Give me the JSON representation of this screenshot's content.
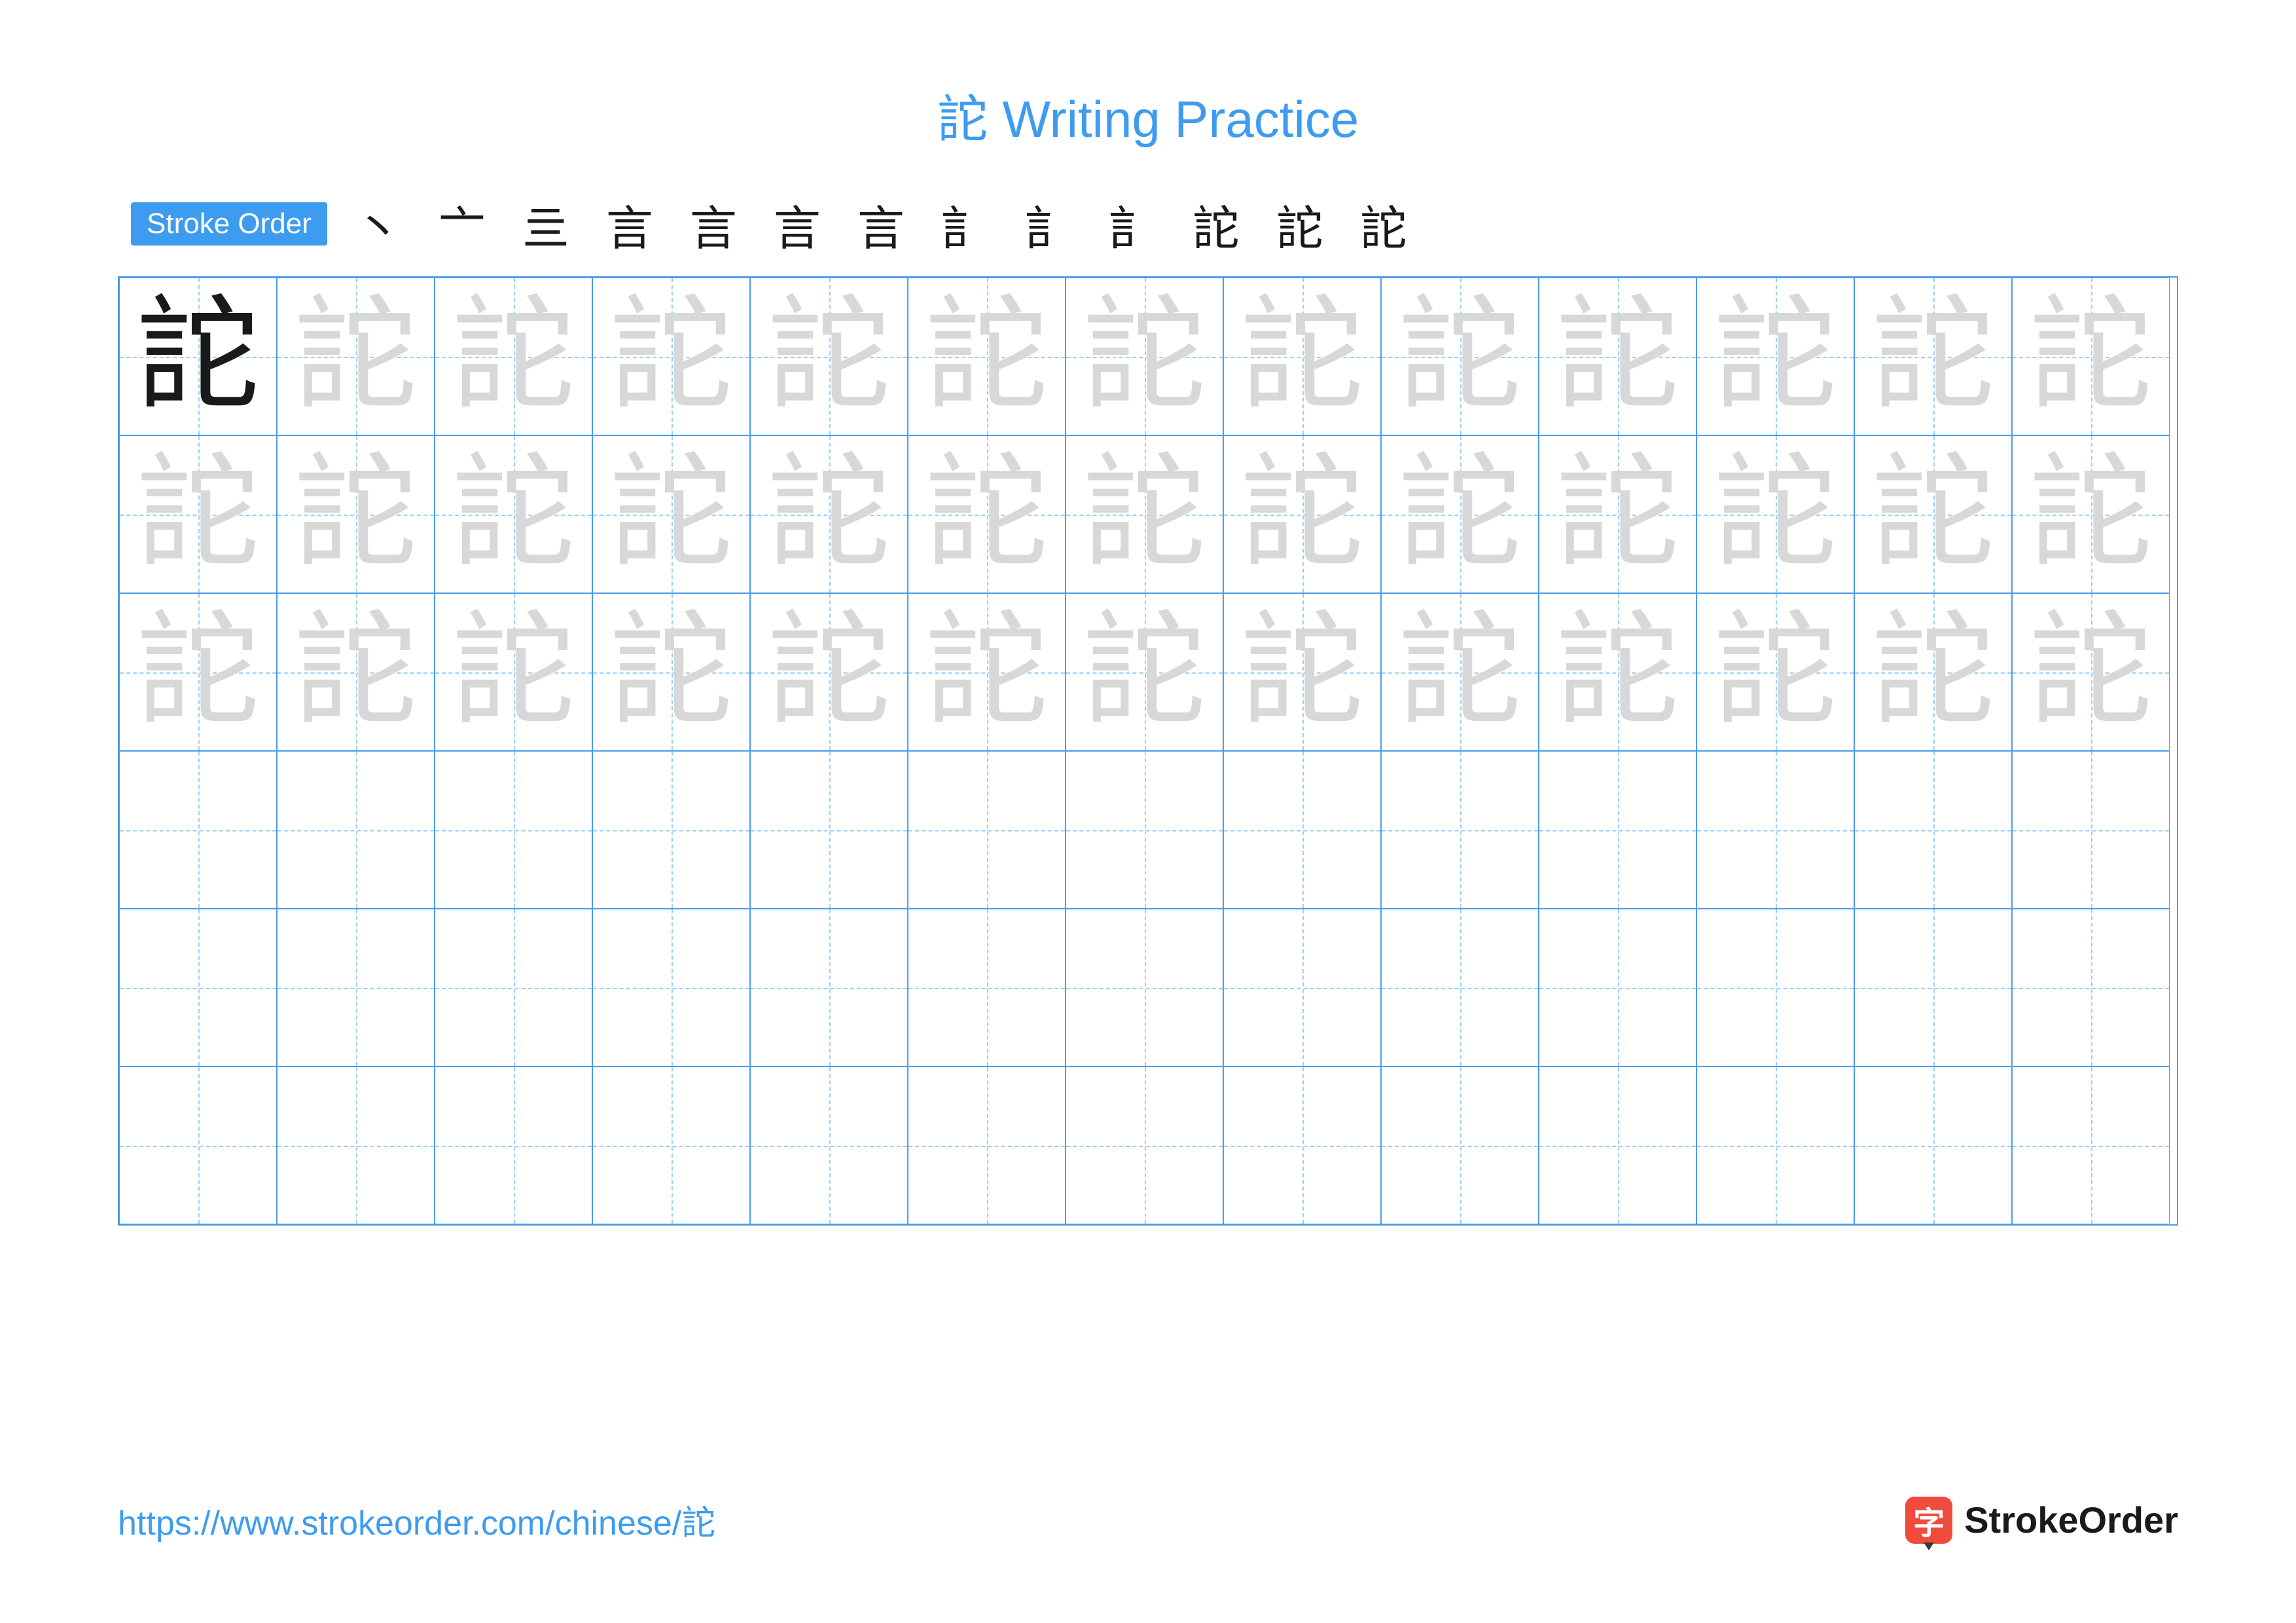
{
  "title": "詑 Writing Practice",
  "badge": "Stroke Order",
  "character": "詑",
  "stroke_steps": [
    "丶",
    "亠",
    "亖",
    "言",
    "言",
    "言",
    "言",
    "訁",
    "訁",
    "訁",
    "詑",
    "詑",
    "詑"
  ],
  "grid": {
    "rows": 6,
    "cols": 13,
    "trace_rows": 3
  },
  "url": "https://www.strokeorder.com/chinese/詑",
  "logo_char": "字",
  "logo_text": "StrokeOrder",
  "colors": {
    "accent": "#3d9cf0",
    "grid_line": "#4a9deb",
    "guide_line": "#9dcff7",
    "char_solid": "#1a1a1a",
    "char_trace": "#d8d8d8",
    "logo_bg": "#f04b3d",
    "background": "#ffffff"
  },
  "fonts": {
    "title_size": 78,
    "badge_size": 44,
    "char_size": 190,
    "url_size": 52,
    "logo_text_size": 56
  }
}
